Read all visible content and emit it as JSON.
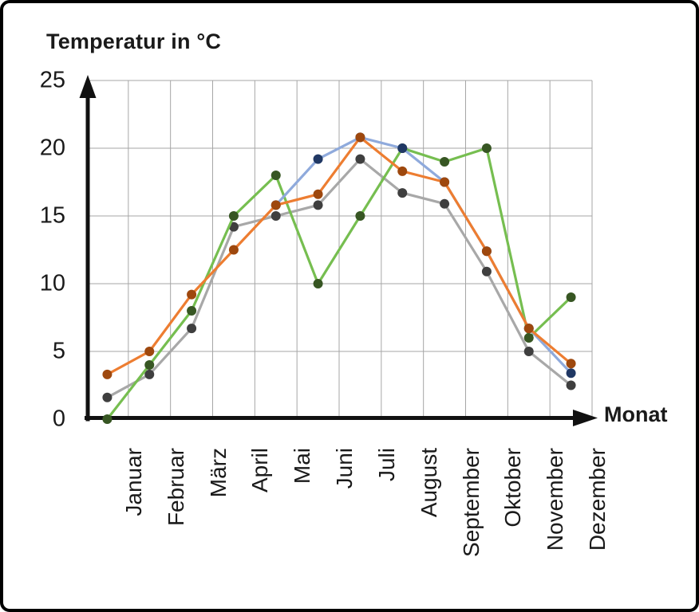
{
  "page": {
    "background": "#ffffff",
    "border_color": "#000000"
  },
  "chart_data": {
    "type": "line",
    "title": "Temperatur in °C",
    "xlabel": "Monat",
    "ylabel": "Temperatur in °C",
    "categories": [
      "Januar",
      "Februar",
      "März",
      "April",
      "Mai",
      "Juni",
      "Juli",
      "August",
      "September",
      "Oktober",
      "November",
      "Dezember"
    ],
    "yticks": [
      0,
      5,
      10,
      15,
      20,
      25
    ],
    "ylim": [
      0,
      25
    ],
    "grid": true,
    "grid_color": "#A6A6A6",
    "axis_color": "#111111",
    "legend": "none",
    "series": [
      {
        "name": "series-gray",
        "line_color": "#A8A8A8",
        "marker_color": "#3F3F3F",
        "values": [
          1.6,
          3.3,
          6.7,
          14.2,
          15,
          15.8,
          19.2,
          16.7,
          15.9,
          10.9,
          5,
          2.5
        ]
      },
      {
        "name": "series-green",
        "line_color": "#76BE50",
        "marker_color": "#375623",
        "values": [
          0,
          4,
          8,
          15,
          18,
          10,
          15,
          20,
          19,
          20,
          6,
          9
        ]
      },
      {
        "name": "series-blue",
        "line_color": "#8FAADC",
        "marker_color": "#203864",
        "values": [
          null,
          null,
          null,
          null,
          15.8,
          19.2,
          20.8,
          20,
          17.5,
          12.4,
          6.7,
          3.4
        ]
      },
      {
        "name": "series-orange",
        "line_color": "#ED7D31",
        "marker_color": "#9E480E",
        "values": [
          3.3,
          5,
          9.2,
          12.5,
          15.8,
          16.6,
          20.8,
          18.3,
          17.5,
          12.4,
          6.7,
          4.1
        ]
      }
    ]
  }
}
